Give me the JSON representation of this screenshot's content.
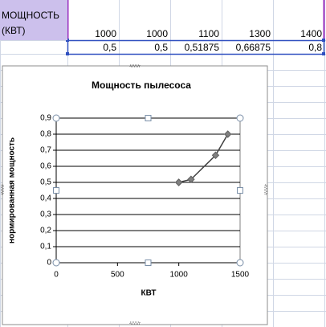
{
  "spreadsheet": {
    "rows": [
      {
        "label": "МОЩНОСТЬ (КВТ)",
        "cells": [
          1000,
          1000,
          1100,
          1300,
          1400
        ]
      },
      {
        "cells": [
          "0,5",
          "0,5",
          "0,51875",
          "0,66875",
          "0,8"
        ]
      }
    ]
  },
  "chart_data": {
    "type": "scatter",
    "title": "Мощность пылесоса",
    "x_label": "КВТ",
    "y_label": "нормированная мощность",
    "x": [
      1000,
      1000,
      1100,
      1300,
      1400
    ],
    "values": [
      0.5,
      0.5,
      0.51875,
      0.66875,
      0.8
    ],
    "color": "#404040",
    "marker_color": "#808080",
    "xlim": [
      0,
      1500
    ],
    "xticks": [
      0,
      500,
      1000,
      1500
    ],
    "ylim": [
      0,
      0.9
    ],
    "yticks": [
      0,
      {
        "value": 0.1,
        "label": "0,1"
      },
      {
        "value": 0.2,
        "label": "0,2"
      },
      {
        "value": 0.3,
        "label": "0,3"
      },
      {
        "value": 0.4,
        "label": "0,4"
      },
      {
        "value": 0.5,
        "label": "0,5"
      },
      {
        "value": 0.6,
        "label": "0,6"
      },
      {
        "value": 0.7,
        "label": "0,7"
      },
      {
        "value": 0.8,
        "label": "0,8"
      },
      {
        "value": 0.9,
        "label": "0,9"
      }
    ],
    "grid": true
  }
}
